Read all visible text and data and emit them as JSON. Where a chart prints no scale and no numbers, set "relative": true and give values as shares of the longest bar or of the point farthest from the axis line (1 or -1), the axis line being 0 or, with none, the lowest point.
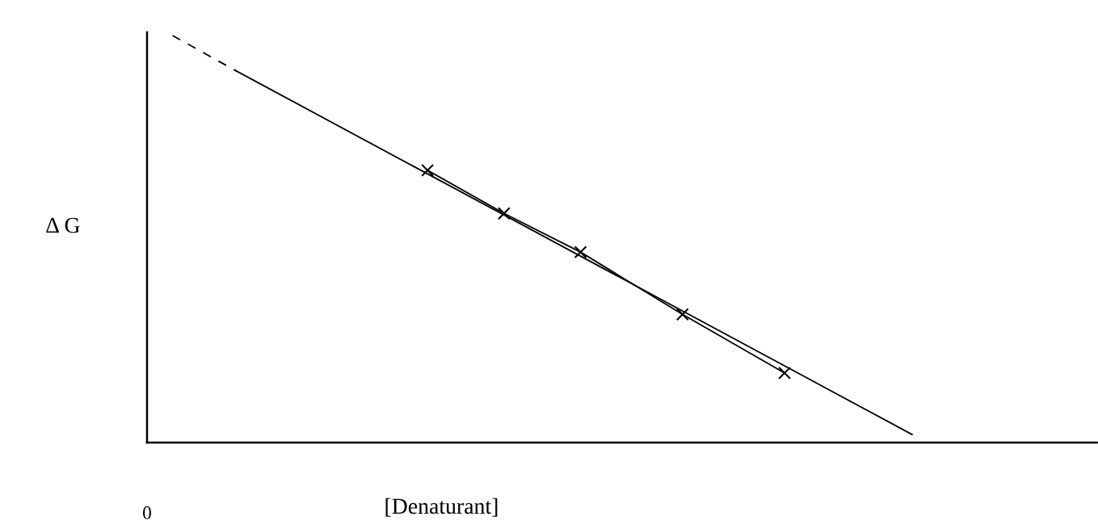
{
  "chart_data": {
    "type": "line",
    "relative": true,
    "xlabel": "[Denaturant]",
    "ylabel": "Δ G",
    "annotations": [
      "0"
    ],
    "categories": [
      null,
      null,
      null,
      null,
      null,
      null,
      null,
      null,
      null,
      null,
      null,
      null,
      null,
      null,
      null,
      null,
      null,
      null,
      null,
      null,
      null,
      null,
      null,
      null,
      null,
      null,
      null,
      null,
      null,
      null,
      null,
      null,
      null,
      null,
      null,
      null,
      null,
      null,
      null,
      null,
      null,
      null,
      null,
      null,
      null,
      null,
      null,
      null,
      null,
      null,
      null,
      null,
      null,
      null,
      null,
      null,
      null,
      null,
      null,
      null,
      null,
      null,
      null,
      null,
      null,
      null,
      null,
      null,
      null,
      null,
      null,
      null,
      null,
      null,
      null
    ],
    "series": [
      {
        "color": "#000000",
        "line_style": "solid",
        "marker": "cross",
        "values": [
          null,
          null,
          null,
          null,
          null,
          null,
          null,
          null,
          null,
          null,
          null,
          null,
          null,
          null,
          null,
          null,
          null,
          null,
          null,
          null,
          null,
          null,
          0.669,
          null,
          null,
          null,
          null,
          null,
          0.563,
          null,
          null,
          null,
          null,
          null,
          0.468,
          null,
          null,
          null,
          null,
          null,
          null,
          null,
          0.315,
          null,
          null,
          null,
          null,
          null,
          null,
          null,
          0.171,
          null,
          null,
          null,
          null,
          null,
          null,
          null,
          null,
          null,
          null,
          null,
          null,
          null,
          null,
          null,
          null,
          null,
          null,
          null,
          null,
          null,
          null,
          null,
          null
        ]
      },
      {
        "color": "#000000",
        "line_style": "solid",
        "values": [
          null,
          null,
          null,
          null,
          null,
          null,
          null,
          0.913,
          null,
          null,
          null,
          null,
          null,
          null,
          null,
          null,
          null,
          null,
          null,
          null,
          null,
          null,
          null,
          null,
          null,
          null,
          null,
          null,
          null,
          null,
          null,
          null,
          null,
          null,
          null,
          null,
          null,
          null,
          null,
          null,
          null,
          null,
          null,
          null,
          null,
          null,
          null,
          null,
          null,
          null,
          null,
          null,
          null,
          null,
          null,
          null,
          null,
          null,
          null,
          null,
          0.02,
          null,
          null,
          null,
          null,
          null,
          null,
          null,
          null,
          null,
          null,
          null,
          null,
          null,
          null
        ]
      },
      {
        "color": "#000000",
        "line_style": "dashed",
        "values": [
          null,
          null,
          1.0,
          null,
          null,
          null,
          null,
          0.913,
          null,
          null,
          null,
          null,
          null,
          null,
          null,
          null,
          null,
          null,
          null,
          null,
          null,
          null,
          null,
          null,
          null,
          null,
          null,
          null,
          null,
          null,
          null,
          null,
          null,
          null,
          null,
          null,
          null,
          null,
          null,
          null,
          null,
          null,
          null,
          null,
          null,
          null,
          null,
          null,
          null,
          null,
          null,
          null,
          null,
          null,
          null,
          null,
          null,
          null,
          null,
          null,
          null,
          null,
          null,
          null,
          null,
          null,
          null,
          null,
          null,
          null,
          null,
          null,
          null,
          null,
          null
        ]
      }
    ]
  }
}
